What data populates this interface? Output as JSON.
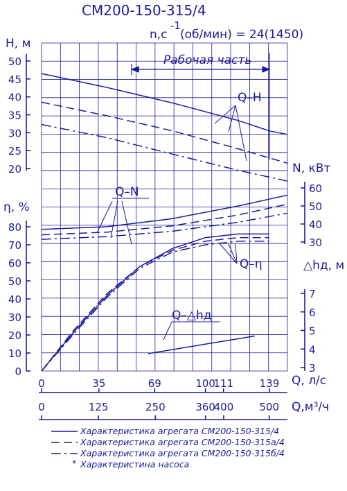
{
  "title": "СМ200-150-315/4",
  "speed_label": "n,c",
  "speed_sup": "-1",
  "speed_rest": "(об/мин) = 24(1450)",
  "working_zone_label": "Рабочая часть",
  "axes": {
    "H": {
      "label": "H, м",
      "ticks": [
        "50",
        "45",
        "40",
        "35",
        "30",
        "25",
        "20"
      ]
    },
    "eta": {
      "label": "η, %",
      "ticks": [
        "80",
        "70",
        "60",
        "50",
        "40",
        "30",
        "20",
        "10",
        "0"
      ]
    },
    "N": {
      "label": "N, кВт",
      "ticks": [
        "60",
        "50",
        "40",
        "30"
      ]
    },
    "dh": {
      "label": "△hд, м",
      "ticks": [
        "7",
        "6",
        "5",
        "4",
        "3"
      ]
    },
    "Qls": {
      "label": "Q, л/с",
      "ticks": [
        "0",
        "35",
        "69",
        "100",
        "111",
        "139"
      ]
    },
    "Qm3": {
      "label": "Q,м³/ч",
      "ticks": [
        "0",
        "125",
        "250",
        "360",
        "400",
        "500"
      ]
    }
  },
  "curve_labels": {
    "QH": "Q–H",
    "QN": "Q–N",
    "Qeta": "Q–η",
    "Qdh": "Q–△hд"
  },
  "legend": [
    {
      "text": "Характеристика агрегата СМ200-150-315/4",
      "style": "solid"
    },
    {
      "text": "Характеристика агрегата СМ200-150-315а/4",
      "style": "dashed"
    },
    {
      "text": "Характеристика агрегата СМ200-150-315б/4",
      "style": "dashdot"
    },
    {
      "text": "Характеристина насоса",
      "style": "star"
    }
  ],
  "colors": {
    "ink": "#1a1a9c",
    "grid": "#1a1a9c"
  },
  "chart_data": {
    "type": "line",
    "title": "СМ200-150-315/4",
    "x_label": "Q, л/с",
    "x_range": [
      0,
      150
    ],
    "working_range_ls": [
      55,
      139
    ],
    "panels": [
      {
        "name": "Q-H",
        "y_label": "H, м",
        "y_range": [
          20,
          50
        ],
        "series": [
          {
            "style": "solid",
            "x": [
              0,
              40,
              80,
              120,
              139,
              150
            ],
            "y": [
              46.5,
              42.6,
              38.3,
              33.4,
              30.5,
              29.5
            ]
          },
          {
            "style": "dashed",
            "x": [
              0,
              40,
              80,
              120,
              150
            ],
            "y": [
              38.5,
              34.7,
              30.5,
              25.5,
              21.5
            ]
          },
          {
            "style": "dashdot",
            "x": [
              0,
              40,
              80,
              120,
              150
            ],
            "y": [
              32.3,
              28.6,
              24.0,
              19.5,
              16.5
            ]
          }
        ]
      },
      {
        "name": "Q-N",
        "y_label": "N, кВт",
        "y_range": [
          30,
          60
        ],
        "series": [
          {
            "style": "solid",
            "x": [
              0,
              40,
              80,
              120,
              150
            ],
            "y": [
              37,
              38.5,
              43,
              50,
              56
            ]
          },
          {
            "style": "dashed",
            "x": [
              0,
              40,
              80,
              120,
              150
            ],
            "y": [
              34,
              35.5,
              39,
              45,
              51
            ]
          },
          {
            "style": "dashdot",
            "x": [
              0,
              40,
              80,
              120,
              150
            ],
            "y": [
              31.5,
              33,
              36,
              41,
              46
            ]
          }
        ]
      },
      {
        "name": "Q-η",
        "y_label": "η, %",
        "y_range": [
          0,
          80
        ],
        "series": [
          {
            "style": "solid",
            "x": [
              0,
              20,
              40,
              60,
              80,
              100,
              120,
              139
            ],
            "y": [
              0,
              22,
              42,
              58,
              68,
              74,
              76,
              76
            ]
          },
          {
            "style": "dashed",
            "x": [
              0,
              20,
              40,
              60,
              80,
              100,
              120,
              139
            ],
            "y": [
              0,
              23,
              43,
              58,
              67,
              72,
              74,
              74
            ]
          },
          {
            "style": "dashdot",
            "x": [
              0,
              20,
              40,
              60,
              80,
              100,
              120,
              139
            ],
            "y": [
              0,
              21,
              41,
              57,
              66,
              70,
              72,
              72
            ]
          }
        ]
      },
      {
        "name": "Q-△hд",
        "y_label": "△hд, м",
        "y_range": [
          3,
          7
        ],
        "series": [
          {
            "style": "solid",
            "x": [
              65,
              130
            ],
            "y": [
              3.75,
              4.7
            ]
          }
        ]
      }
    ],
    "x2_label": "Q,м³/ч",
    "x2_ticks": [
      0,
      125,
      250,
      360,
      400,
      500
    ],
    "grid": true
  }
}
